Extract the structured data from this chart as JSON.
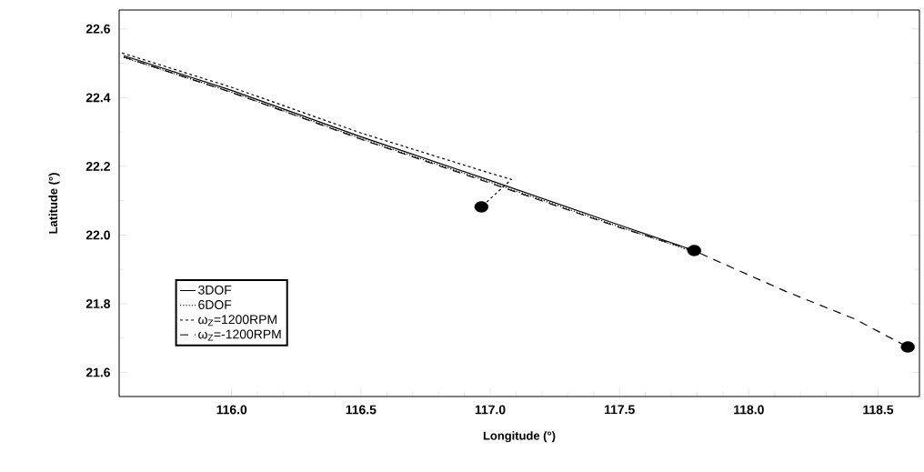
{
  "chart_data": {
    "type": "line",
    "xlabel": "Longitude (°)",
    "ylabel": "Latitude (°)",
    "xlim": [
      115.565,
      118.66
    ],
    "ylim": [
      21.53,
      22.655
    ],
    "xticks": [
      {
        "value": 116.0,
        "label": "116.0"
      },
      {
        "value": 116.5,
        "label": "116.5"
      },
      {
        "value": 117.0,
        "label": "117.0"
      },
      {
        "value": 117.5,
        "label": "117.5"
      },
      {
        "value": 118.0,
        "label": "118.0"
      },
      {
        "value": 118.5,
        "label": "118.5"
      }
    ],
    "yticks": [
      {
        "value": 21.6,
        "label": "21.6"
      },
      {
        "value": 21.8,
        "label": "21.8"
      },
      {
        "value": 22.0,
        "label": "22.0"
      },
      {
        "value": 22.2,
        "label": "22.2"
      },
      {
        "value": 22.4,
        "label": "22.4"
      },
      {
        "value": 22.6,
        "label": "22.6"
      }
    ],
    "grid": false,
    "legend": "bottom left",
    "marker": "none",
    "series": [
      {
        "name": "3DOF",
        "color": "#000000",
        "line_style": "solid",
        "x": [
          115.583,
          116.0,
          116.5,
          117.0,
          117.5,
          117.789
        ],
        "values": [
          22.522,
          22.421,
          22.286,
          22.159,
          22.029,
          21.955
        ]
      },
      {
        "name": "6DOF",
        "color": "#000000",
        "line_style": "dotted",
        "x": [
          115.583,
          116.0,
          116.5,
          117.0,
          117.5,
          117.78
        ],
        "values": [
          22.517,
          22.416,
          22.281,
          22.154,
          22.024,
          21.953
        ]
      },
      {
        "name": "ω$_{Z}$=1200RPM",
        "color": "#000000",
        "line_style": "dashed",
        "x": [
          115.576,
          116.0,
          116.5,
          117.0,
          117.082,
          116.966
        ],
        "values": [
          22.53,
          22.43,
          22.297,
          22.18,
          22.162,
          22.082
        ]
      },
      {
        "name": "ω$_{Z}$=-1200RPM",
        "color": "#000000",
        "line_style": "long dashed",
        "x": [
          115.583,
          116.0,
          116.5,
          117.0,
          117.5,
          117.789,
          117.849,
          118.143,
          118.409,
          118.615
        ],
        "values": [
          22.518,
          22.415,
          22.279,
          22.151,
          22.022,
          21.955,
          21.934,
          21.836,
          21.756,
          21.674
        ]
      },
      {
        "type": "scatter",
        "color": "#000000",
        "marker": "circle",
        "x": [
          116.966,
          117.789,
          118.615
        ],
        "values": [
          22.082,
          21.955,
          21.674
        ]
      }
    ]
  }
}
